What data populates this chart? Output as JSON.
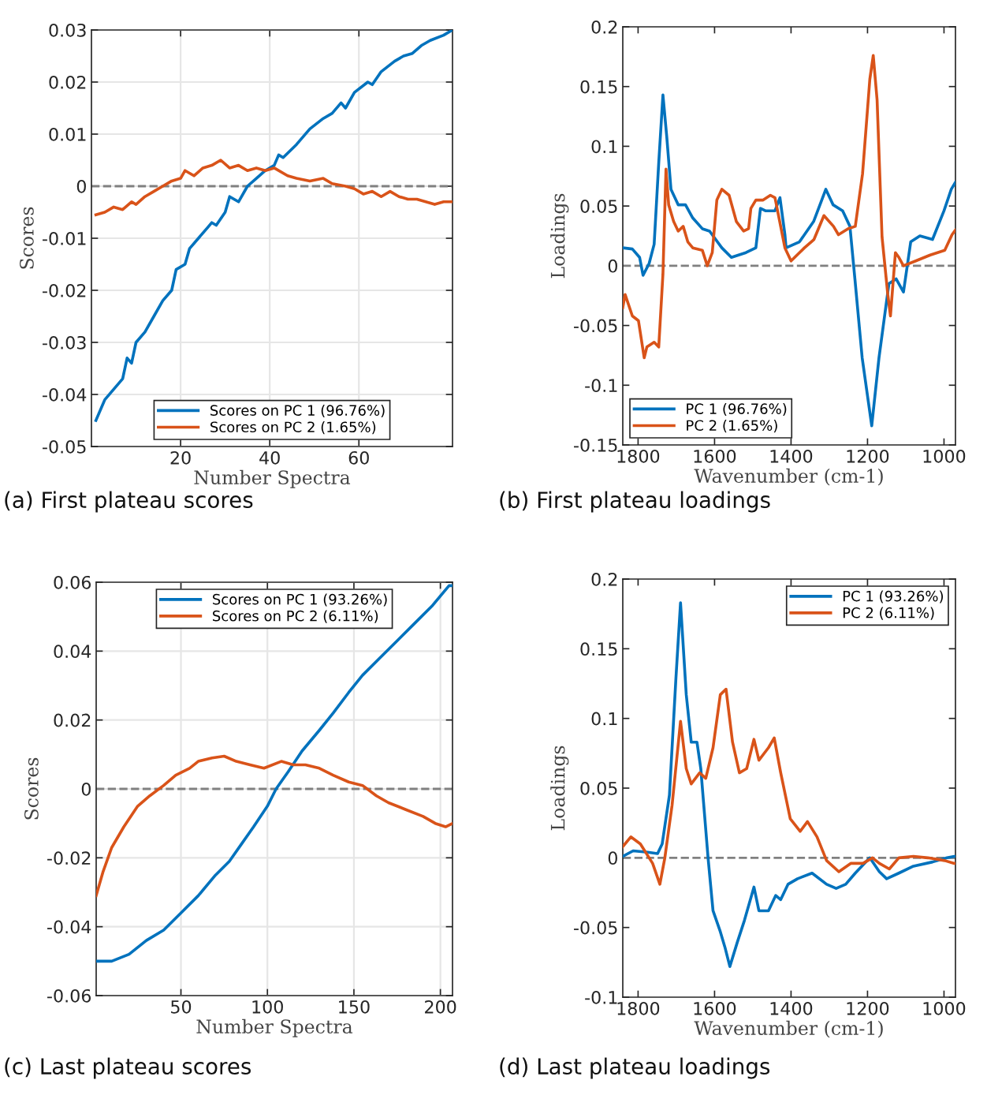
{
  "chart_data": [
    {
      "type": "line",
      "title": "(a) First plateau scores",
      "xlabel": "Number Spectra",
      "ylabel": "Scores",
      "xlim": [
        0,
        81
      ],
      "xticks": [
        20,
        40,
        60
      ],
      "ylim": [
        -0.05,
        0.03
      ],
      "yticks": [
        -0.05,
        -0.04,
        -0.03,
        -0.02,
        -0.01,
        0,
        0.01,
        0.02,
        0.03
      ],
      "grid": true,
      "legend": "bottom",
      "marker": "none",
      "line_style": "solid",
      "ref_lines": [
        {
          "axis": "y",
          "value": 0,
          "color": "#808080",
          "line_style": "dashed"
        }
      ],
      "series": [
        {
          "name": "Scores on PC 1 (96.76%)",
          "color": "#0072bd",
          "x": [
            1,
            3,
            5,
            7,
            8,
            9,
            10,
            12,
            14,
            16,
            18,
            19,
            21,
            22,
            24,
            26,
            27,
            28,
            30,
            31,
            33,
            35,
            37,
            39,
            41,
            42,
            43,
            46,
            49,
            52,
            54,
            56,
            57,
            59,
            62,
            63,
            65,
            68,
            70,
            72,
            74,
            76,
            79,
            81
          ],
          "values": [
            -0.045,
            -0.041,
            -0.039,
            -0.037,
            -0.033,
            -0.034,
            -0.03,
            -0.028,
            -0.025,
            -0.022,
            -0.02,
            -0.016,
            -0.015,
            -0.012,
            -0.01,
            -0.008,
            -0.007,
            -0.0075,
            -0.005,
            -0.002,
            -0.003,
            0,
            0.0015,
            0.003,
            0.004,
            0.006,
            0.0055,
            0.008,
            0.011,
            0.013,
            0.014,
            0.016,
            0.015,
            0.018,
            0.02,
            0.0195,
            0.022,
            0.024,
            0.025,
            0.0255,
            0.027,
            0.028,
            0.029,
            0.03
          ]
        },
        {
          "name": "Scores on PC 2 (1.65%)",
          "color": "#d95319",
          "x": [
            1,
            3,
            5,
            7,
            9,
            10,
            12,
            14,
            16,
            18,
            20,
            21,
            23,
            25,
            27,
            29,
            31,
            33,
            35,
            37,
            39,
            41,
            44,
            46,
            49,
            52,
            54,
            57,
            59,
            61,
            63,
            65,
            67,
            69,
            71,
            73,
            75,
            77,
            79,
            81
          ],
          "values": [
            -0.0055,
            -0.005,
            -0.004,
            -0.0045,
            -0.003,
            -0.0035,
            -0.002,
            -0.001,
            0,
            0.001,
            0.0015,
            0.003,
            0.002,
            0.0035,
            0.004,
            0.005,
            0.0035,
            0.004,
            0.003,
            0.0035,
            0.003,
            0.0035,
            0.002,
            0.0015,
            0.001,
            0.0015,
            0.0005,
            0,
            -0.0005,
            -0.0015,
            -0.001,
            -0.002,
            -0.001,
            -0.002,
            -0.0025,
            -0.0025,
            -0.003,
            -0.0035,
            -0.003,
            -0.003
          ]
        }
      ]
    },
    {
      "type": "line",
      "title": "(b) First plateau loadings",
      "xlabel": "Wavenumber (cm-1)",
      "ylabel": "Loadings",
      "xlim": [
        1840,
        970
      ],
      "xticks": [
        1800,
        1600,
        1400,
        1200,
        1000
      ],
      "ylim": [
        -0.15,
        0.2
      ],
      "yticks": [
        -0.15,
        -0.1,
        -0.05,
        0,
        0.05,
        0.1,
        0.15,
        0.2
      ],
      "grid": false,
      "legend": "bottom left",
      "marker": "none",
      "line_style": "solid",
      "ref_lines": [
        {
          "axis": "y",
          "value": 0,
          "color": "#808080",
          "line_style": "dashed"
        }
      ],
      "series": [
        {
          "name": "PC 1 (96.76%)",
          "color": "#0072bd",
          "x": [
            1840,
            1815,
            1796,
            1787,
            1771,
            1758,
            1746,
            1735,
            1725,
            1714,
            1695,
            1676,
            1657,
            1632,
            1613,
            1581,
            1556,
            1518,
            1492,
            1480,
            1467,
            1442,
            1429,
            1416,
            1413,
            1378,
            1341,
            1309,
            1290,
            1265,
            1246,
            1233,
            1214,
            1189,
            1170,
            1144,
            1125,
            1106,
            1087,
            1063,
            1030,
            1000,
            981,
            970
          ],
          "values": [
            0.015,
            0.014,
            0.007,
            -0.008,
            0.002,
            0.018,
            0.086,
            0.143,
            0.108,
            0.064,
            0.051,
            0.051,
            0.04,
            0.031,
            0.029,
            0.015,
            0.007,
            0.011,
            0.015,
            0.048,
            0.046,
            0.046,
            0.057,
            0.026,
            0.015,
            0.02,
            0.037,
            0.064,
            0.051,
            0.046,
            0.033,
            -0.011,
            -0.077,
            -0.134,
            -0.077,
            -0.015,
            -0.011,
            -0.022,
            0.02,
            0.025,
            0.022,
            0.046,
            0.064,
            0.07
          ]
        },
        {
          "name": "PC 2 (1.65%)",
          "color": "#d95319",
          "x": [
            1840,
            1834,
            1815,
            1799,
            1784,
            1777,
            1758,
            1746,
            1735,
            1727,
            1720,
            1707,
            1695,
            1682,
            1670,
            1657,
            1632,
            1619,
            1606,
            1594,
            1581,
            1562,
            1543,
            1524,
            1511,
            1505,
            1492,
            1473,
            1454,
            1442,
            1416,
            1400,
            1365,
            1340,
            1314,
            1289,
            1276,
            1251,
            1232,
            1213,
            1194,
            1185,
            1175,
            1162,
            1147,
            1140,
            1127,
            1118,
            1106,
            1074,
            1036,
            998,
            979,
            970
          ],
          "values": [
            -0.035,
            -0.024,
            -0.042,
            -0.046,
            -0.077,
            -0.068,
            -0.064,
            -0.068,
            -0.007,
            0.081,
            0.051,
            0.037,
            0.029,
            0.033,
            0.02,
            0.015,
            0.013,
            0,
            0.011,
            0.055,
            0.064,
            0.059,
            0.037,
            0.029,
            0.031,
            0.048,
            0.055,
            0.055,
            0.059,
            0.057,
            0.015,
            0.004,
            0.015,
            0.022,
            0.042,
            0.033,
            0.026,
            0.031,
            0.033,
            0.077,
            0.156,
            0.176,
            0.139,
            0.024,
            -0.024,
            -0.042,
            0.011,
            0.007,
            0,
            0.004,
            0.009,
            0.013,
            0.026,
            0.03
          ]
        }
      ]
    },
    {
      "type": "line",
      "title": "(c) Last plateau scores",
      "xlabel": "Number Spectra",
      "ylabel": "Scores",
      "xlim": [
        1,
        207
      ],
      "xticks": [
        50,
        100,
        150,
        200
      ],
      "ylim": [
        -0.06,
        0.06
      ],
      "yticks": [
        -0.06,
        -0.04,
        -0.02,
        0,
        0.02,
        0.04,
        0.06
      ],
      "grid": true,
      "legend": "top",
      "marker": "none",
      "line_style": "solid",
      "ref_lines": [
        {
          "axis": "y",
          "value": 0,
          "color": "#808080",
          "line_style": "dashed"
        }
      ],
      "series": [
        {
          "name": "Scores on PC 1 (93.26%)",
          "color": "#0072bd",
          "x": [
            1,
            10,
            20,
            30,
            40,
            50,
            60,
            70,
            78,
            85,
            92,
            100,
            105,
            112,
            120,
            130,
            138,
            147,
            155,
            165,
            175,
            185,
            195,
            205,
            207
          ],
          "values": [
            -0.05,
            -0.05,
            -0.048,
            -0.044,
            -0.041,
            -0.036,
            -0.031,
            -0.025,
            -0.021,
            -0.016,
            -0.011,
            -0.005,
            0,
            0.005,
            0.011,
            0.017,
            0.022,
            0.028,
            0.033,
            0.038,
            0.043,
            0.048,
            0.053,
            0.059,
            0.059
          ]
        },
        {
          "name": "Scores on PC 2 (6.11%)",
          "color": "#d95319",
          "x": [
            1,
            5,
            10,
            17,
            25,
            32,
            40,
            47,
            55,
            60,
            68,
            75,
            82,
            90,
            98,
            108,
            115,
            122,
            130,
            138,
            147,
            155,
            163,
            170,
            180,
            190,
            197,
            203,
            207
          ],
          "values": [
            -0.031,
            -0.024,
            -0.017,
            -0.011,
            -0.005,
            -0.002,
            0.001,
            0.004,
            0.006,
            0.008,
            0.009,
            0.0095,
            0.008,
            0.007,
            0.006,
            0.008,
            0.007,
            0.007,
            0.006,
            0.004,
            0.002,
            0.001,
            -0.002,
            -0.004,
            -0.006,
            -0.008,
            -0.01,
            -0.011,
            -0.01
          ]
        }
      ]
    },
    {
      "type": "line",
      "title": "(d) Last plateau loadings",
      "xlabel": "Wavenumber (cm-1)",
      "ylabel": "Loadings",
      "xlim": [
        1840,
        970
      ],
      "xticks": [
        1800,
        1600,
        1400,
        1200,
        1000
      ],
      "ylim": [
        -0.1,
        0.2
      ],
      "yticks": [
        -0.1,
        -0.05,
        0,
        0.05,
        0.1,
        0.15,
        0.2
      ],
      "grid": false,
      "legend": "top right",
      "marker": "none",
      "line_style": "solid",
      "ref_lines": [
        {
          "axis": "y",
          "value": 0,
          "color": "#808080",
          "line_style": "dashed"
        }
      ],
      "series": [
        {
          "name": "PC 1 (93.26%)",
          "color": "#0072bd",
          "x": [
            1840,
            1813,
            1775,
            1749,
            1737,
            1718,
            1701,
            1689,
            1674,
            1661,
            1646,
            1636,
            1617,
            1604,
            1585,
            1573,
            1560,
            1541,
            1522,
            1497,
            1484,
            1459,
            1440,
            1427,
            1408,
            1383,
            1345,
            1307,
            1282,
            1257,
            1232,
            1194,
            1169,
            1150,
            1118,
            1080,
            1030,
            992,
            973,
            970
          ],
          "values": [
            0.001,
            0.005,
            0.004,
            0.003,
            0.01,
            0.045,
            0.129,
            0.183,
            0.117,
            0.083,
            0.083,
            0.064,
            0,
            -0.038,
            -0.053,
            -0.064,
            -0.078,
            -0.061,
            -0.045,
            -0.021,
            -0.038,
            -0.038,
            -0.027,
            -0.03,
            -0.019,
            -0.015,
            -0.011,
            -0.019,
            -0.022,
            -0.019,
            -0.011,
            0,
            -0.01,
            -0.015,
            -0.011,
            -0.006,
            -0.003,
            0,
            0.001,
            0.001
          ]
        },
        {
          "name": "PC 2 (6.11%)",
          "color": "#d95319",
          "x": [
            1840,
            1819,
            1794,
            1762,
            1743,
            1730,
            1711,
            1689,
            1674,
            1661,
            1639,
            1623,
            1604,
            1585,
            1570,
            1553,
            1535,
            1516,
            1497,
            1484,
            1459,
            1444,
            1427,
            1402,
            1376,
            1357,
            1332,
            1307,
            1275,
            1244,
            1212,
            1187,
            1169,
            1143,
            1118,
            1080,
            1042,
            998,
            973,
            970
          ],
          "values": [
            0.008,
            0.015,
            0.01,
            -0.004,
            -0.019,
            0,
            0.038,
            0.098,
            0.064,
            0.053,
            0.061,
            0.057,
            0.079,
            0.117,
            0.121,
            0.083,
            0.061,
            0.064,
            0.085,
            0.07,
            0.079,
            0.086,
            0.061,
            0.028,
            0.019,
            0.026,
            0.015,
            -0.002,
            -0.01,
            -0.004,
            -0.004,
            0,
            -0.004,
            -0.008,
            0,
            0.001,
            0,
            -0.002,
            -0.004,
            -0.004
          ]
        }
      ]
    }
  ]
}
